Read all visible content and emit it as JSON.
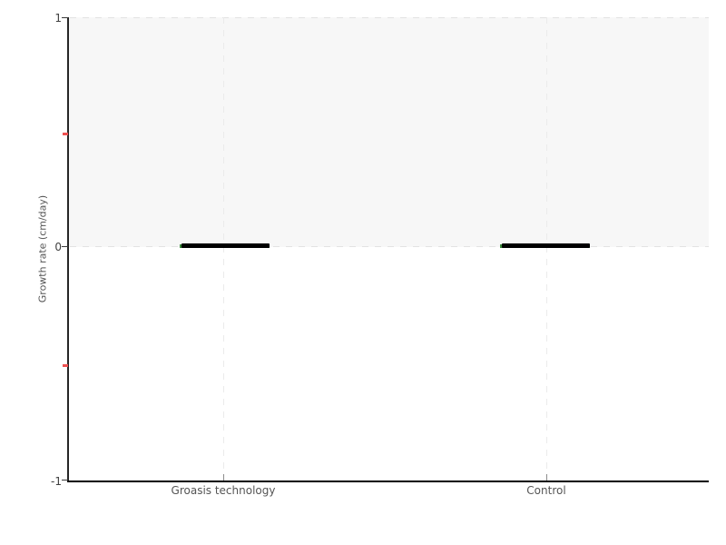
{
  "figure": {
    "background": "#ffffff",
    "colors": {
      "zone_fill": "#f7f7f7",
      "grid_dash_horizontal": "#e3e3e3",
      "grid_dash_vertical": "#ebebeb",
      "y_axis_line": "#262626",
      "x_axis_line": "#000000",
      "major_tick": "#3a3a3a",
      "minor_tick_red": "#ee5151",
      "tick_label_text": "#3f3f3f",
      "axis_title_text": "#555555",
      "median_bar": "#000000",
      "box_edge_green": "#3a8a3a"
    }
  },
  "chart_data": {
    "type": "box",
    "title": "",
    "xlabel": "",
    "ylabel": "Growth rate (cm/day)",
    "categories": [
      "Groasis technology",
      "Control"
    ],
    "series": [
      {
        "name": "Groasis technology",
        "median": 0,
        "q1": 0,
        "q3": 0,
        "min": 0,
        "max": 0
      },
      {
        "name": "Control",
        "median": 0,
        "q1": 0,
        "q3": 0,
        "min": 0,
        "max": 0
      }
    ],
    "ylim": [
      -1,
      1
    ],
    "y_major_tick_labels": [
      "1",
      "0",
      "-1"
    ],
    "y_minor_ticks": [
      0.5,
      -0.5
    ],
    "shaded_band": {
      "from": 0,
      "to": 1
    },
    "grid": "dashed horizontal lines at y=1 and y=0; dashed vertical lines at each category",
    "legend": "none"
  }
}
